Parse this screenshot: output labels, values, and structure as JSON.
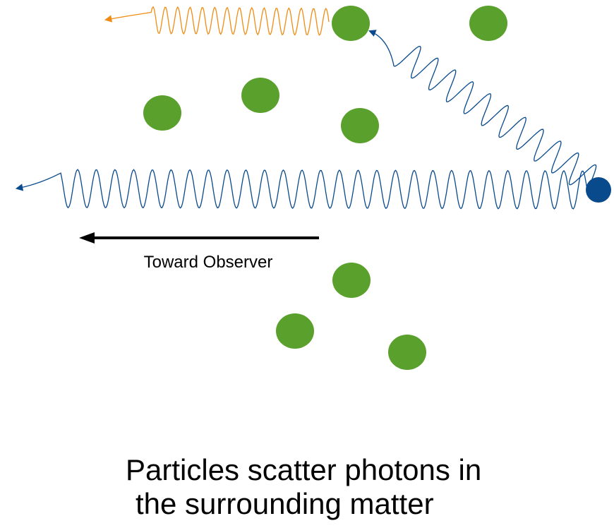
{
  "diagram": {
    "observer_label": "Toward Observer",
    "caption_line1": "Particles scatter photons in",
    "caption_line2": "the surrounding matter",
    "colors": {
      "particle": "#5aa02c",
      "source": "#084a8c",
      "photon_blue": "#084a8c",
      "photon_orange": "#f08c14",
      "arrow": "#000000"
    },
    "elements": {
      "scattering_particles": "green circles",
      "source_particle": "blue circle",
      "photons": "wavy lines with arrowheads"
    }
  }
}
